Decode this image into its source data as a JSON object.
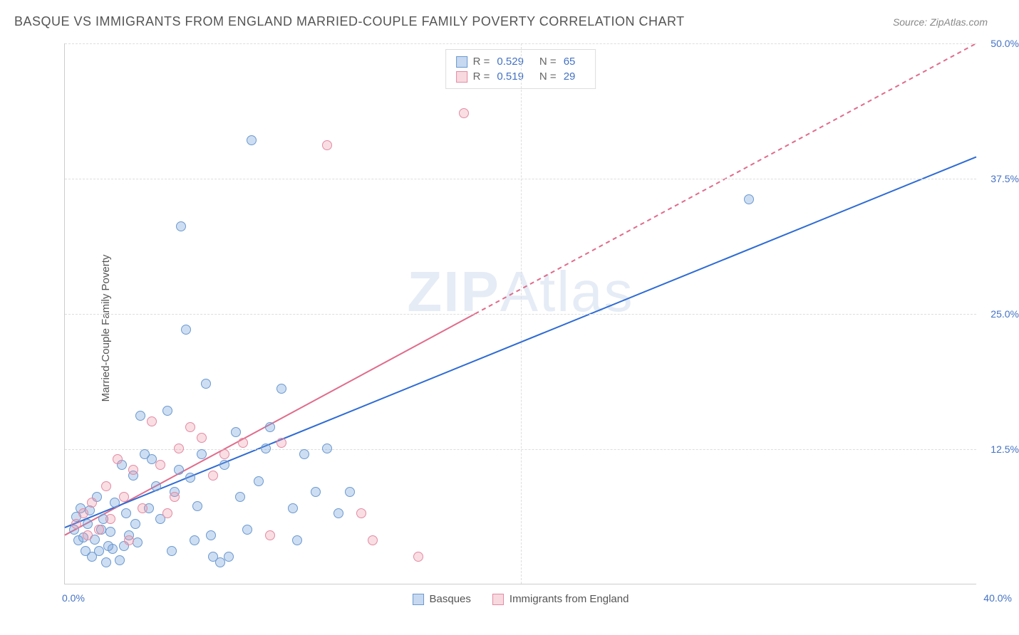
{
  "title": "BASQUE VS IMMIGRANTS FROM ENGLAND MARRIED-COUPLE FAMILY POVERTY CORRELATION CHART",
  "source": "Source: ZipAtlas.com",
  "watermark_bold": "ZIP",
  "watermark_light": "Atlas",
  "chart": {
    "type": "scatter",
    "xlim": [
      0,
      40
    ],
    "ylim": [
      0,
      50
    ],
    "x_start_label": "0.0%",
    "x_end_label": "40.0%",
    "y_ticks": [
      12.5,
      25.0,
      37.5,
      50.0
    ],
    "y_tick_labels": [
      "12.5%",
      "25.0%",
      "37.5%",
      "50.0%"
    ],
    "x_grid_at": [
      20
    ],
    "ylabel": "Married-Couple Family Poverty",
    "background_color": "#ffffff",
    "grid_color": "#dddddd",
    "axis_color": "#cccccc",
    "tick_label_color": "#4472c4",
    "label_fontsize": 15,
    "tick_fontsize": 14
  },
  "stats": {
    "series1": {
      "R_label": "R =",
      "R": "0.529",
      "N_label": "N =",
      "N": "65"
    },
    "series2": {
      "R_label": "R =",
      "R": "0.519",
      "N_label": "N =",
      "N": "29"
    }
  },
  "series": {
    "blue": {
      "name": "Basques",
      "color_fill": "rgba(116,160,218,0.35)",
      "color_stroke": "#6b99d0",
      "regression_color": "#2e6bd4",
      "regression_width": 2,
      "regression_dash": "none",
      "regression": {
        "x1": 0,
        "y1": 5.2,
        "x2": 40,
        "y2": 39.5
      },
      "points": [
        [
          0.4,
          5.0
        ],
        [
          0.5,
          6.2
        ],
        [
          0.6,
          4.0
        ],
        [
          0.7,
          7.0
        ],
        [
          0.8,
          4.3
        ],
        [
          1.0,
          5.5
        ],
        [
          1.1,
          6.8
        ],
        [
          1.2,
          2.5
        ],
        [
          1.3,
          4.1
        ],
        [
          1.4,
          8.0
        ],
        [
          1.5,
          3.0
        ],
        [
          1.6,
          5.0
        ],
        [
          1.7,
          6.0
        ],
        [
          1.8,
          2.0
        ],
        [
          2.0,
          4.8
        ],
        [
          2.1,
          3.2
        ],
        [
          2.2,
          7.5
        ],
        [
          2.4,
          2.2
        ],
        [
          2.5,
          11.0
        ],
        [
          2.6,
          3.5
        ],
        [
          2.8,
          4.5
        ],
        [
          3.0,
          10.0
        ],
        [
          3.1,
          5.5
        ],
        [
          3.3,
          15.5
        ],
        [
          3.5,
          12.0
        ],
        [
          3.7,
          7.0
        ],
        [
          3.8,
          11.5
        ],
        [
          4.0,
          9.0
        ],
        [
          4.2,
          6.0
        ],
        [
          4.5,
          16.0
        ],
        [
          4.8,
          8.5
        ],
        [
          5.0,
          10.5
        ],
        [
          5.1,
          33.0
        ],
        [
          5.3,
          23.5
        ],
        [
          5.5,
          9.8
        ],
        [
          5.8,
          7.2
        ],
        [
          6.0,
          12.0
        ],
        [
          6.2,
          18.5
        ],
        [
          6.4,
          4.5
        ],
        [
          6.8,
          2.0
        ],
        [
          7.0,
          11.0
        ],
        [
          7.5,
          14.0
        ],
        [
          7.7,
          8.0
        ],
        [
          8.0,
          5.0
        ],
        [
          8.2,
          41.0
        ],
        [
          8.5,
          9.5
        ],
        [
          8.8,
          12.5
        ],
        [
          9.0,
          14.5
        ],
        [
          9.5,
          18.0
        ],
        [
          10.0,
          7.0
        ],
        [
          10.2,
          4.0
        ],
        [
          10.5,
          12.0
        ],
        [
          11.0,
          8.5
        ],
        [
          11.5,
          12.5
        ],
        [
          12.0,
          6.5
        ],
        [
          30.0,
          35.5
        ],
        [
          12.5,
          8.5
        ],
        [
          6.5,
          2.5
        ],
        [
          4.7,
          3.0
        ],
        [
          3.2,
          3.8
        ],
        [
          2.7,
          6.5
        ],
        [
          1.9,
          3.5
        ],
        [
          0.9,
          3.0
        ],
        [
          5.7,
          4.0
        ],
        [
          7.2,
          2.5
        ]
      ]
    },
    "pink": {
      "name": "Immigrants from England",
      "color_fill": "rgba(235,145,165,0.3)",
      "color_stroke": "#e48aa3",
      "regression_color": "#e06b8b",
      "regression_width": 2,
      "regression_dash": "6,5",
      "regression": {
        "x1": 0,
        "y1": 4.5,
        "x2": 40,
        "y2": 50.0
      },
      "points": [
        [
          0.5,
          5.5
        ],
        [
          0.8,
          6.5
        ],
        [
          1.0,
          4.5
        ],
        [
          1.2,
          7.5
        ],
        [
          1.5,
          5.0
        ],
        [
          1.8,
          9.0
        ],
        [
          2.0,
          6.0
        ],
        [
          2.3,
          11.5
        ],
        [
          2.6,
          8.0
        ],
        [
          3.0,
          10.5
        ],
        [
          3.4,
          7.0
        ],
        [
          3.8,
          15.0
        ],
        [
          4.2,
          11.0
        ],
        [
          4.5,
          6.5
        ],
        [
          5.0,
          12.5
        ],
        [
          5.5,
          14.5
        ],
        [
          6.0,
          13.5
        ],
        [
          6.5,
          10.0
        ],
        [
          7.0,
          12.0
        ],
        [
          7.8,
          13.0
        ],
        [
          9.0,
          4.5
        ],
        [
          9.5,
          13.0
        ],
        [
          11.5,
          40.5
        ],
        [
          13.0,
          6.5
        ],
        [
          13.5,
          4.0
        ],
        [
          15.5,
          2.5
        ],
        [
          17.5,
          43.5
        ],
        [
          4.8,
          8.0
        ],
        [
          2.8,
          4.0
        ]
      ]
    }
  },
  "legend": {
    "series1_label": "Basques",
    "series2_label": "Immigrants from England"
  }
}
